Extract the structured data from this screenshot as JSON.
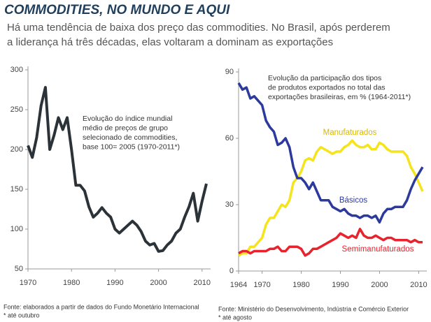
{
  "header": {
    "title": "COMMODITIES, NO MUNDO E AQUI",
    "subtitle": [
      "Há uma tendência de baixa dos preço das commodities. No Brasil, após perderem",
      "a liderança há três décadas, elas voltaram a dominam as exportações"
    ]
  },
  "chart_data": [
    {
      "type": "line",
      "annotation": [
        "Evolução do índice mundial",
        "médio de preços de grupo",
        "selecionado de commodities,",
        "base 100= 2005 (1970-2011*)"
      ],
      "x": [
        1970,
        1971,
        1972,
        1973,
        1974,
        1975,
        1976,
        1977,
        1978,
        1979,
        1980,
        1981,
        1982,
        1983,
        1984,
        1985,
        1986,
        1987,
        1988,
        1989,
        1990,
        1991,
        1992,
        1993,
        1994,
        1995,
        1996,
        1997,
        1998,
        1999,
        2000,
        2001,
        2002,
        2003,
        2004,
        2005,
        2006,
        2007,
        2008,
        2009,
        2010,
        2011
      ],
      "values": [
        205,
        190,
        215,
        255,
        278,
        200,
        218,
        240,
        225,
        240,
        200,
        155,
        155,
        148,
        128,
        115,
        120,
        127,
        120,
        115,
        100,
        95,
        100,
        105,
        110,
        105,
        97,
        85,
        80,
        82,
        72,
        73,
        80,
        85,
        95,
        100,
        115,
        128,
        145,
        110,
        135,
        157
      ],
      "color": "#2b3338",
      "xlim": [
        1970,
        2011
      ],
      "xticks": [
        1970,
        1980,
        1990,
        2000,
        2010
      ],
      "ylim": [
        50,
        300
      ],
      "yticks": [
        50,
        100,
        150,
        200,
        250,
        300
      ],
      "source": [
        "Fonte: elaborados a partir de dados do Fundo Monetário Internacional",
        "* até outubro"
      ]
    },
    {
      "type": "line",
      "annotation": [
        "Evolução da participação dos tipos",
        "de produtos exportados no total das",
        "exportações brasileiras, em % (1964-2011*)"
      ],
      "x": [
        1964,
        1965,
        1966,
        1967,
        1968,
        1969,
        1970,
        1971,
        1972,
        1973,
        1974,
        1975,
        1976,
        1977,
        1978,
        1979,
        1980,
        1981,
        1982,
        1983,
        1984,
        1985,
        1986,
        1987,
        1988,
        1989,
        1990,
        1991,
        1992,
        1993,
        1994,
        1995,
        1996,
        1997,
        1998,
        1999,
        2000,
        2001,
        2002,
        2003,
        2004,
        2005,
        2006,
        2007,
        2008,
        2009,
        2010,
        2011
      ],
      "series": [
        {
          "name": "Manufaturados",
          "color": "#f5e41c",
          "values": [
            7,
            8,
            8,
            11,
            11,
            13,
            15,
            21,
            24,
            24,
            27,
            30,
            29,
            32,
            40,
            42,
            45,
            50,
            51,
            50,
            54,
            56,
            55,
            54,
            53,
            54,
            54,
            56,
            57,
            59,
            57,
            56,
            56,
            57,
            55,
            55,
            58,
            57,
            55,
            54,
            54,
            54,
            54,
            52,
            47,
            44,
            40,
            36
          ]
        },
        {
          "name": "Básicos",
          "color": "#2b3a9c",
          "values": [
            85,
            82,
            83,
            78,
            79,
            77,
            75,
            68,
            65,
            63,
            57,
            58,
            60,
            56,
            47,
            42,
            42,
            40,
            37,
            40,
            36,
            32,
            32,
            32,
            29,
            28,
            27,
            28,
            26,
            25,
            25,
            24,
            25,
            25,
            24,
            25,
            22,
            26,
            28,
            28,
            29,
            29,
            29,
            32,
            37,
            41,
            44,
            47
          ]
        },
        {
          "name": "Semimanufaturados",
          "color": "#e8232d",
          "values": [
            8,
            9,
            9,
            8,
            9,
            9,
            9,
            9,
            10,
            10,
            11,
            9,
            9,
            11,
            11,
            11,
            10,
            7,
            8,
            10,
            10,
            11,
            12,
            13,
            14,
            15,
            17,
            16,
            15,
            16,
            15,
            19,
            16,
            15,
            15,
            16,
            15,
            14,
            15,
            15,
            14,
            14,
            14,
            14,
            13,
            14,
            13,
            13
          ]
        }
      ],
      "xlim": [
        1964,
        2011
      ],
      "xticks": [
        1964,
        1970,
        1980,
        1990,
        2000,
        2010
      ],
      "ylim": [
        0,
        90
      ],
      "yticks": [
        0,
        30,
        60,
        90
      ],
      "source": [
        "Fonte: Ministério do Desenvolvimento, Indústria e Comércio Exterior",
        "* até agosto"
      ]
    }
  ]
}
